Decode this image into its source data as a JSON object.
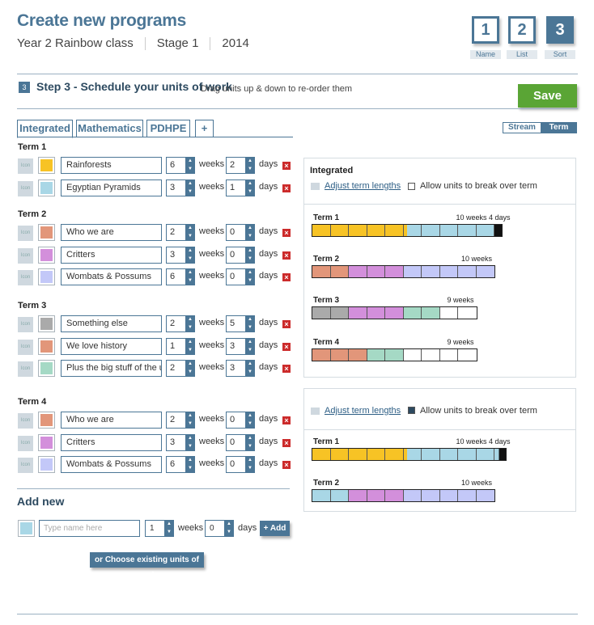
{
  "header": {
    "title": "Create new programs",
    "class_name": "Year 2 Rainbow class",
    "stage": "Stage 1",
    "year": "2014"
  },
  "steps": [
    {
      "num": "1",
      "label": "Name"
    },
    {
      "num": "2",
      "label": "List"
    },
    {
      "num": "3",
      "label": "Sort"
    }
  ],
  "step3": {
    "num": "3",
    "title": "Step 3 - Schedule your units of work",
    "hint": "Drag units up & down to re-order them",
    "save_label": "Save"
  },
  "tabs": {
    "items": [
      "Integrated",
      "Mathematics",
      "PDHPE",
      "+"
    ],
    "active": "Integrated"
  },
  "view_toggle": {
    "stream": "Stream",
    "term": "Term",
    "active": "Term"
  },
  "labels": {
    "icon": "Icon",
    "weeks": "weeks",
    "days": "days"
  },
  "terms": [
    {
      "name": "Term 1",
      "units": [
        {
          "name": "Rainforests",
          "color": "#f7c325",
          "weeks": "6",
          "days": "2"
        },
        {
          "name": "Egyptian Pyramids",
          "color": "#a9d7e6",
          "weeks": "3",
          "days": "1"
        }
      ]
    },
    {
      "name": "Term 2",
      "units": [
        {
          "name": "Who we are",
          "color": "#e2967a",
          "weeks": "2",
          "days": "0"
        },
        {
          "name": "Critters",
          "color": "#d38fdb",
          "weeks": "3",
          "days": "0"
        },
        {
          "name": "Wombats & Possums",
          "color": "#c3c8f8",
          "weeks": "6",
          "days": "0"
        }
      ]
    },
    {
      "name": "Term 3",
      "units": [
        {
          "name": "Something else",
          "color": "#aaaaaa",
          "weeks": "2",
          "days": "5"
        },
        {
          "name": "We love history",
          "color": "#e2967a",
          "weeks": "1",
          "days": "3"
        },
        {
          "name": "Plus the big stuff of the u",
          "color": "#a5d9c5",
          "weeks": "2",
          "days": "3"
        }
      ]
    },
    {
      "name": "Term 4",
      "units": [
        {
          "name": "Who we are",
          "color": "#e2967a",
          "weeks": "2",
          "days": "0"
        },
        {
          "name": "Critters",
          "color": "#d38fdb",
          "weeks": "3",
          "days": "0"
        },
        {
          "name": "Wombats & Possums",
          "color": "#c3c8f8",
          "weeks": "6",
          "days": "0"
        }
      ]
    }
  ],
  "add_new": {
    "title": "Add new",
    "placeholder": "Type name here",
    "weeks": "1",
    "days": "0",
    "add_label": "+ Add",
    "choose_label": "or Choose existing units of work",
    "color": "#a9d7e6"
  },
  "panel1": {
    "title": "Integrated",
    "adjust_link": "Adjust term lengths",
    "allow_label": "Allow units to break over term",
    "allow_checked": false,
    "terms": [
      {
        "name": "Term 1",
        "length": "10 weeks 4 days",
        "cells": [
          "#f7c325",
          "#f7c325",
          "#f7c325",
          "#f7c325",
          "#f7c325",
          "split",
          "#a9d7e6",
          "#a9d7e6",
          "#a9d7e6",
          "#a9d7e6",
          "end"
        ]
      },
      {
        "name": "Term 2",
        "length": "10 weeks",
        "cells": [
          "#e2967a",
          "#e2967a",
          "#d38fdb",
          "#d38fdb",
          "#d38fdb",
          "#c3c8f8",
          "#c3c8f8",
          "#c3c8f8",
          "#c3c8f8",
          "#c3c8f8"
        ]
      },
      {
        "name": "Term 3",
        "length": "9 weeks",
        "cells": [
          "#aaaaaa",
          "#aaaaaa",
          "#d38fdb",
          "#d38fdb",
          "#d38fdb",
          "#a5d9c5",
          "#a5d9c5",
          "#ffffff",
          "#ffffff"
        ]
      },
      {
        "name": "Term 4",
        "length": "9 weeks",
        "cells": [
          "#e2967a",
          "#e2967a",
          "#e2967a",
          "#a5d9c5",
          "#a5d9c5",
          "#ffffff",
          "#ffffff",
          "#ffffff",
          "#ffffff"
        ]
      }
    ]
  },
  "panel2": {
    "adjust_link": "Adjust term lengths",
    "allow_label": "Allow units to break over term",
    "allow_checked": true,
    "terms": [
      {
        "name": "Term 1",
        "length": "10 weeks 4 days",
        "cells": [
          "#f7c325",
          "#f7c325",
          "#f7c325",
          "#f7c325",
          "#f7c325",
          "split",
          "#a9d7e6",
          "#a9d7e6",
          "#a9d7e6",
          "#a9d7e6",
          "arrow"
        ]
      },
      {
        "name": "Term 2",
        "length": "10 weeks",
        "cells": [
          "#a9d7e6",
          "#a9d7e6",
          "#d38fdb",
          "#d38fdb",
          "#d38fdb",
          "#c3c8f8",
          "#c3c8f8",
          "#c3c8f8",
          "#c3c8f8",
          "#c3c8f8"
        ]
      }
    ]
  }
}
